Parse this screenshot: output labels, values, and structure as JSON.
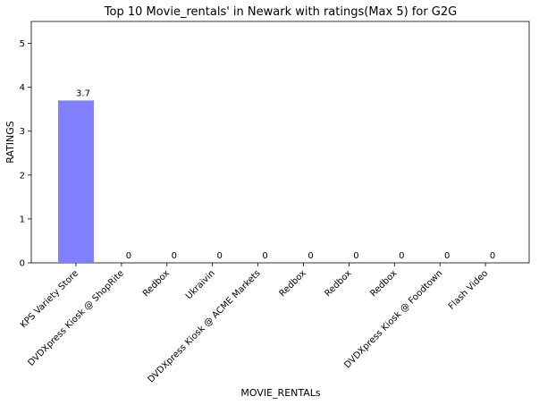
{
  "chart_data": {
    "type": "bar",
    "title": "Top 10 Movie_rentals' in Newark with ratings(Max 5) for G2G",
    "xlabel": "MOVIE_RENTALs",
    "ylabel": "RATINGS",
    "categories": [
      "KPS Variety Store",
      "DVDXpress Kiosk @ ShopRite",
      "Redbox",
      "Ukraivin",
      "DVDXpress Kiosk @ ACME Markets",
      "Redbox",
      "Redbox",
      "Redbox",
      "DVDXpress Kiosk @ Foodtown",
      "Flash Video"
    ],
    "values": [
      3.7,
      0,
      0,
      0,
      0,
      0,
      0,
      0,
      0,
      0
    ],
    "data_labels": [
      "3.7",
      "0",
      "0",
      "0",
      "0",
      "0",
      "0",
      "0",
      "0",
      "0"
    ],
    "ylim": [
      0,
      5.5
    ],
    "yticks": [
      0,
      1,
      2,
      3,
      4,
      5
    ],
    "grid": false,
    "bar_color": "#8080ff"
  }
}
